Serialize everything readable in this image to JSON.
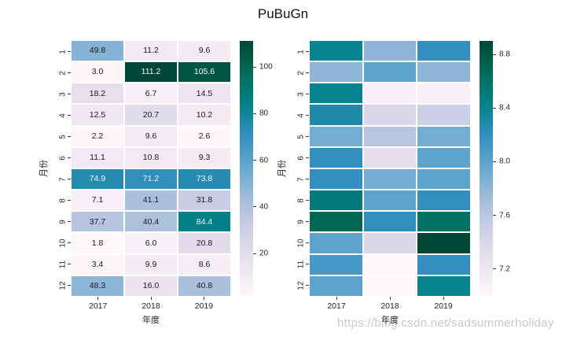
{
  "title": "PuBuGn",
  "watermark": "https://blog.csdn.net/sadsummerholiday",
  "colormap": {
    "name": "PuBuGn",
    "stops": [
      "#fff7fb",
      "#ece2f0",
      "#d0d1e6",
      "#a6bddb",
      "#67a9cf",
      "#3690c0",
      "#02818a",
      "#016c59",
      "#014636"
    ],
    "annot_light_text": "#f5f5f5",
    "annot_dark_text": "#1a1a1a"
  },
  "chart_data": [
    {
      "type": "heatmap",
      "panel": "left",
      "xlabel": "年度",
      "ylabel": "月份",
      "x_categories": [
        "2017",
        "2018",
        "2019"
      ],
      "y_categories": [
        "1",
        "2",
        "3",
        "4",
        "5",
        "6",
        "7",
        "8",
        "9",
        "10",
        "11",
        "12"
      ],
      "annotated": true,
      "vmin": 1.8,
      "vmax": 111.2,
      "colorbar_ticks": [
        "20",
        "40",
        "60",
        "80",
        "100"
      ],
      "rows": [
        [
          49.8,
          11.2,
          9.6
        ],
        [
          3.0,
          111.2,
          105.6
        ],
        [
          18.2,
          6.7,
          14.5
        ],
        [
          12.5,
          20.7,
          10.2
        ],
        [
          2.2,
          9.6,
          2.6
        ],
        [
          11.1,
          10.8,
          9.3
        ],
        [
          74.9,
          71.2,
          73.8
        ],
        [
          7.1,
          41.1,
          31.8
        ],
        [
          37.7,
          40.4,
          84.4
        ],
        [
          1.8,
          6.0,
          20.8
        ],
        [
          3.4,
          9.9,
          8.6
        ],
        [
          48.3,
          16.0,
          40.8
        ]
      ]
    },
    {
      "type": "heatmap",
      "panel": "right",
      "xlabel": "年度",
      "ylabel": "月份",
      "x_categories": [
        "2017",
        "2018",
        "2019"
      ],
      "y_categories": [
        "1",
        "2",
        "3",
        "4",
        "5",
        "6",
        "7",
        "8",
        "9",
        "10",
        "11",
        "12"
      ],
      "annotated": false,
      "vmin": 7.0,
      "vmax": 8.9,
      "colorbar_ticks": [
        "7.2",
        "7.6",
        "8.0",
        "8.4",
        "8.8"
      ],
      "rows": [
        [
          8.4,
          7.8,
          8.2
        ],
        [
          7.8,
          8.0,
          7.8
        ],
        [
          8.4,
          7.1,
          7.1
        ],
        [
          8.3,
          7.4,
          7.5
        ],
        [
          7.9,
          7.6,
          7.9
        ],
        [
          8.2,
          7.3,
          8.0
        ],
        [
          8.2,
          7.9,
          8.0
        ],
        [
          8.5,
          8.0,
          8.2
        ],
        [
          8.7,
          8.2,
          8.6
        ],
        [
          8.0,
          7.4,
          8.9
        ],
        [
          8.1,
          7.0,
          8.2
        ],
        [
          8.0,
          7.0,
          8.4
        ]
      ]
    }
  ]
}
